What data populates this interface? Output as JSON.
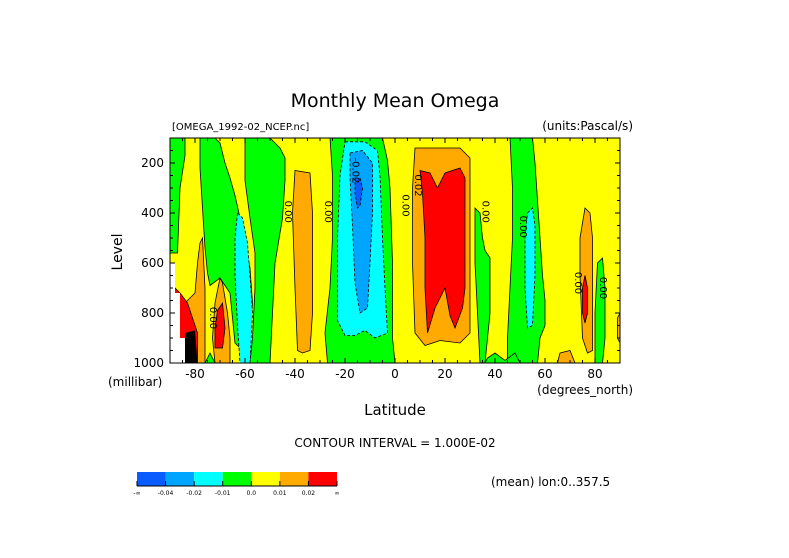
{
  "chart_data": {
    "type": "heatmap",
    "subtype": "filled-contour",
    "title": "Monthly Mean Omega",
    "subtitle_left": "[OMEGA_1992-02_NCEP.nc]",
    "subtitle_right": "(units:Pascal/s)",
    "xlabel": "Latitude",
    "xunits": "(degrees_north)",
    "ylabel": "Level",
    "yunits": "(millibar)",
    "xlim": [
      -90,
      90
    ],
    "ylim": [
      100,
      1000
    ],
    "y_inverted": true,
    "xticks": [
      -80,
      -60,
      -40,
      -20,
      0,
      20,
      40,
      60,
      80
    ],
    "xtick_labels": [
      "-80",
      "-60",
      "-40",
      "-20",
      "0",
      "20",
      "40",
      "60",
      "80"
    ],
    "yticks": [
      200,
      400,
      600,
      800,
      1000
    ],
    "ytick_labels": [
      "200",
      "400",
      "600",
      "800",
      "1000"
    ],
    "contour_interval_text": "CONTOUR INTERVAL = 1.000E-02",
    "footnote": "(mean) lon:0..357.5",
    "legend": {
      "placement": "bottom-left",
      "labels": [
        "-∞",
        "-0.04",
        "-0.02",
        "-0.01",
        "0.0",
        "0.01",
        "0.02",
        "∞"
      ],
      "colors": [
        "#0a5cff",
        "#00a5ff",
        "#00ffff",
        "#00ff00",
        "#ffff00",
        "#ffaa00",
        "#ff0000"
      ]
    },
    "background_level_color": "#ffff00",
    "regions": [
      {
        "name": "green-sh-upper",
        "color": "#00ff00",
        "points": [
          [
            -90,
            100
          ],
          [
            -84,
            100
          ],
          [
            -84,
            170
          ],
          [
            -86,
            300
          ],
          [
            -87,
            560
          ],
          [
            -90,
            560
          ]
        ]
      },
      {
        "name": "green-sh-midlat",
        "color": "#00ff00",
        "points": [
          [
            -78,
            100
          ],
          [
            -72,
            100
          ],
          [
            -70,
            120
          ],
          [
            -68,
            200
          ],
          [
            -66,
            260
          ],
          [
            -64,
            330
          ],
          [
            -62,
            420
          ],
          [
            -60,
            520
          ],
          [
            -58,
            620
          ],
          [
            -57,
            760
          ],
          [
            -58,
            900
          ],
          [
            -60,
            960
          ],
          [
            -64,
            920
          ],
          [
            -65,
            820
          ],
          [
            -66,
            720
          ],
          [
            -70,
            660
          ],
          [
            -74,
            690
          ],
          [
            -75,
            640
          ],
          [
            -76,
            540
          ],
          [
            -77,
            380
          ],
          [
            -78,
            220
          ]
        ]
      },
      {
        "name": "green-sh-sub",
        "color": "#00ff00",
        "points": [
          [
            -60,
            100
          ],
          [
            -50,
            100
          ],
          [
            -46,
            140
          ],
          [
            -44,
            180
          ],
          [
            -44,
            270
          ],
          [
            -45,
            420
          ],
          [
            -48,
            600
          ],
          [
            -49,
            800
          ],
          [
            -50,
            1000
          ],
          [
            -58,
            1000
          ],
          [
            -57,
            900
          ],
          [
            -56,
            700
          ],
          [
            -56,
            560
          ],
          [
            -58,
            420
          ],
          [
            -60,
            270
          ]
        ]
      },
      {
        "name": "green-tropic-band",
        "color": "#00ff00",
        "points": [
          [
            -26,
            100
          ],
          [
            -5,
            100
          ],
          [
            -3,
            190
          ],
          [
            -2,
            300
          ],
          [
            -1,
            600
          ],
          [
            -1,
            900
          ],
          [
            0,
            1000
          ],
          [
            -27,
            1000
          ],
          [
            -28,
            880
          ],
          [
            -26,
            700
          ],
          [
            -25,
            500
          ],
          [
            -25,
            250
          ]
        ]
      },
      {
        "name": "cyan-sh-60",
        "color": "#00ffff",
        "points": [
          [
            -63,
            400
          ],
          [
            -61,
            420
          ],
          [
            -59,
            520
          ],
          [
            -58,
            650
          ],
          [
            -57,
            800
          ],
          [
            -58,
            1000
          ],
          [
            -62,
            1000
          ],
          [
            -63,
            850
          ],
          [
            -64,
            650
          ],
          [
            -64,
            500
          ]
        ]
      },
      {
        "name": "cyan-eq",
        "color": "#00ffff",
        "points": [
          [
            -20,
            115
          ],
          [
            -12,
            115
          ],
          [
            -7,
            150
          ],
          [
            -6,
            250
          ],
          [
            -5,
            500
          ],
          [
            -4,
            700
          ],
          [
            -3,
            880
          ],
          [
            -8,
            900
          ],
          [
            -12,
            870
          ],
          [
            -16,
            890
          ],
          [
            -20,
            890
          ],
          [
            -23,
            830
          ],
          [
            -23,
            500
          ],
          [
            -22,
            250
          ]
        ]
      },
      {
        "name": "lightblue-eq",
        "color": "#00a5ff",
        "points": [
          [
            -18,
            160
          ],
          [
            -13,
            150
          ],
          [
            -9,
            200
          ],
          [
            -9,
            400
          ],
          [
            -10,
            600
          ],
          [
            -11,
            780
          ],
          [
            -14,
            800
          ],
          [
            -16,
            680
          ],
          [
            -17,
            450
          ],
          [
            -18,
            260
          ]
        ]
      },
      {
        "name": "blue-core",
        "color": "#0a5cff",
        "points": [
          [
            -16,
            260
          ],
          [
            -14,
            260
          ],
          [
            -13,
            300
          ],
          [
            -14,
            370
          ],
          [
            -15,
            380
          ],
          [
            -16,
            320
          ]
        ]
      },
      {
        "name": "orange-sh-40",
        "color": "#ffaa00",
        "points": [
          [
            -40,
            230
          ],
          [
            -34,
            240
          ],
          [
            -33,
            400
          ],
          [
            -33,
            800
          ],
          [
            -34,
            950
          ],
          [
            -37,
            960
          ],
          [
            -39,
            950
          ],
          [
            -40,
            700
          ],
          [
            -41,
            400
          ]
        ]
      },
      {
        "name": "orange-sh-80",
        "color": "#ffaa00",
        "points": [
          [
            -90,
            720
          ],
          [
            -84,
            760
          ],
          [
            -80,
            720
          ],
          [
            -79,
            600
          ],
          [
            -78,
            520
          ],
          [
            -77,
            500
          ],
          [
            -76,
            700
          ],
          [
            -76,
            900
          ],
          [
            -76,
            1000
          ],
          [
            -90,
            1000
          ]
        ]
      },
      {
        "name": "orange-sh-70",
        "color": "#ffaa00",
        "points": [
          [
            -70,
            660
          ],
          [
            -69,
            680
          ],
          [
            -67,
            800
          ],
          [
            -66,
            900
          ],
          [
            -66,
            1000
          ],
          [
            -72,
            1000
          ],
          [
            -73,
            900
          ],
          [
            -72,
            760
          ]
        ]
      },
      {
        "name": "red-sh-80",
        "color": "#ff0000",
        "points": [
          [
            -90,
            680
          ],
          [
            -86,
            720
          ],
          [
            -83,
            760
          ],
          [
            -79,
            880
          ],
          [
            -79,
            1000
          ],
          [
            -90,
            1000
          ]
        ]
      },
      {
        "name": "red-sh-70",
        "color": "#ff0000",
        "points": [
          [
            -71,
            790
          ],
          [
            -69,
            760
          ],
          [
            -68,
            860
          ],
          [
            -69,
            940
          ],
          [
            -72,
            940
          ],
          [
            -72,
            860
          ]
        ]
      },
      {
        "name": "orange-nh-20",
        "color": "#ffaa00",
        "points": [
          [
            8,
            140
          ],
          [
            26,
            140
          ],
          [
            30,
            180
          ],
          [
            30,
            700
          ],
          [
            30,
            880
          ],
          [
            26,
            920
          ],
          [
            18,
            910
          ],
          [
            12,
            930
          ],
          [
            8,
            880
          ],
          [
            7,
            600
          ],
          [
            7,
            300
          ]
        ]
      },
      {
        "name": "red-nh-20",
        "color": "#ff0000",
        "points": [
          [
            10,
            230
          ],
          [
            14,
            240
          ],
          [
            17,
            300
          ],
          [
            20,
            240
          ],
          [
            26,
            220
          ],
          [
            28,
            260
          ],
          [
            28,
            700
          ],
          [
            27,
            780
          ],
          [
            24,
            860
          ],
          [
            22,
            810
          ],
          [
            20,
            700
          ],
          [
            16,
            780
          ],
          [
            13,
            880
          ],
          [
            12,
            700
          ],
          [
            12,
            500
          ],
          [
            11,
            320
          ]
        ]
      },
      {
        "name": "green-nh-36",
        "color": "#00ff00",
        "points": [
          [
            32,
            380
          ],
          [
            34,
            400
          ],
          [
            35,
            500
          ],
          [
            36,
            550
          ],
          [
            38,
            580
          ],
          [
            38,
            800
          ],
          [
            37,
            900
          ],
          [
            36,
            1000
          ],
          [
            34,
            1000
          ],
          [
            33,
            800
          ],
          [
            32,
            600
          ]
        ]
      },
      {
        "name": "green-nh-58",
        "color": "#00ff00",
        "points": [
          [
            46,
            100
          ],
          [
            55,
            100
          ],
          [
            56,
            200
          ],
          [
            57,
            350
          ],
          [
            58,
            500
          ],
          [
            59,
            650
          ],
          [
            60,
            750
          ],
          [
            60,
            850
          ],
          [
            58,
            900
          ],
          [
            57,
            1000
          ],
          [
            45,
            1000
          ],
          [
            45,
            900
          ],
          [
            46,
            700
          ],
          [
            47,
            500
          ],
          [
            47,
            300
          ]
        ]
      },
      {
        "name": "cyan-nh-58",
        "color": "#00ffff",
        "points": [
          [
            53,
            400
          ],
          [
            55,
            380
          ],
          [
            56,
            450
          ],
          [
            56,
            650
          ],
          [
            55,
            850
          ],
          [
            53,
            860
          ],
          [
            52,
            700
          ],
          [
            52,
            500
          ]
        ]
      },
      {
        "name": "orange-nh-78",
        "color": "#ffaa00",
        "points": [
          [
            76,
            380
          ],
          [
            78,
            400
          ],
          [
            79,
            500
          ],
          [
            79,
            800
          ],
          [
            79,
            950
          ],
          [
            77,
            960
          ],
          [
            75,
            900
          ],
          [
            74,
            650
          ],
          [
            74,
            500
          ]
        ]
      },
      {
        "name": "red-nh-78",
        "color": "#ff0000",
        "points": [
          [
            76,
            650
          ],
          [
            77,
            700
          ],
          [
            77,
            800
          ],
          [
            76,
            840
          ],
          [
            75,
            800
          ],
          [
            75,
            700
          ]
        ]
      },
      {
        "name": "green-nh-84",
        "color": "#00ff00",
        "points": [
          [
            81,
            600
          ],
          [
            83,
            580
          ],
          [
            84,
            700
          ],
          [
            84,
            900
          ],
          [
            83,
            1000
          ],
          [
            80,
            1000
          ],
          [
            80,
            800
          ]
        ]
      },
      {
        "name": "orange-nh-edge",
        "color": "#ffaa00",
        "points": [
          [
            89,
            820
          ],
          [
            90,
            800
          ],
          [
            90,
            920
          ],
          [
            89,
            900
          ]
        ]
      },
      {
        "name": "green-sh-floor",
        "color": "#00ff00",
        "points": [
          [
            -74,
            960
          ],
          [
            -72,
            1000
          ],
          [
            -76,
            1000
          ]
        ]
      },
      {
        "name": "green-nh-floor",
        "color": "#00ff00",
        "points": [
          [
            37,
            980
          ],
          [
            40,
            960
          ],
          [
            44,
            990
          ],
          [
            48,
            960
          ],
          [
            50,
            1000
          ],
          [
            36,
            1000
          ]
        ]
      },
      {
        "name": "orange-nh-floor",
        "color": "#ffaa00",
        "points": [
          [
            66,
            960
          ],
          [
            70,
            950
          ],
          [
            72,
            1000
          ],
          [
            65,
            1000
          ]
        ]
      }
    ],
    "labels_on_contours": [
      {
        "text": "0.00",
        "lat": -44,
        "lev": 395
      },
      {
        "text": "0.00",
        "lat": -28,
        "lev": 395
      },
      {
        "text": "0.00",
        "lat": -74,
        "lev": 820
      },
      {
        "text": "-0.02",
        "lat": -17,
        "lev": 230
      },
      {
        "text": "0.00",
        "lat": 3,
        "lev": 370
      },
      {
        "text": "0.02",
        "lat": 8,
        "lev": 290
      },
      {
        "text": "0.00",
        "lat": 35,
        "lev": 395
      },
      {
        "text": "0.00",
        "lat": 50,
        "lev": 455
      },
      {
        "text": "0.00",
        "lat": 72,
        "lev": 680
      },
      {
        "text": "0.00",
        "lat": 82,
        "lev": 700
      }
    ],
    "missing_region": {
      "color": "#ffffff",
      "points": [
        [
          -90,
          600
        ],
        [
          -88,
          600
        ],
        [
          -88,
          720
        ],
        [
          -86,
          720
        ],
        [
          -86,
          900
        ],
        [
          -84,
          900
        ],
        [
          -84,
          1000
        ],
        [
          -90,
          1000
        ]
      ]
    },
    "dense_contours_region": {
      "color": "#000000",
      "points": [
        [
          -84,
          880
        ],
        [
          -80,
          870
        ],
        [
          -79,
          1000
        ],
        [
          -84,
          1000
        ]
      ]
    }
  }
}
